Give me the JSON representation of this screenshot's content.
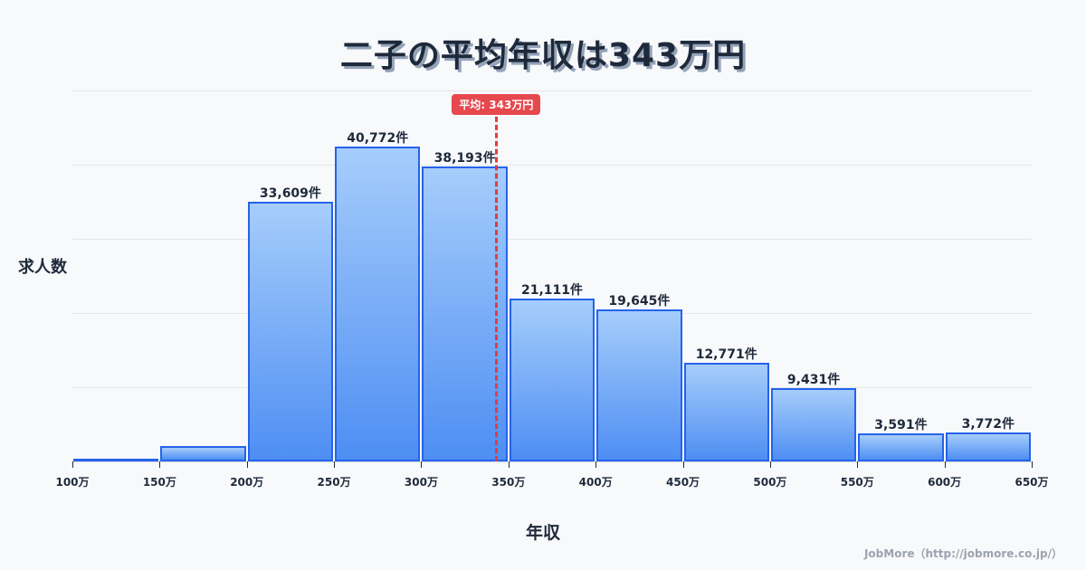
{
  "header": {
    "title": "二子の平均年収は343万円"
  },
  "axes": {
    "ylabel": "求人数",
    "xlabel": "年収"
  },
  "mean": {
    "label": "平均: 343万円",
    "value": 343,
    "color": "#e5484d"
  },
  "credit": "JobMore（http://jobmore.co.jp/）",
  "colors": {
    "bar_border": "#2563eb",
    "bar_top": "#a6cdfb",
    "bar_bottom": "#4e8ef3",
    "title": "#1e293b"
  },
  "chart_data": {
    "type": "bar",
    "title": "二子の平均年収は343万円",
    "xlabel": "年収",
    "ylabel": "求人数",
    "x_ticks": [
      "100万",
      "150万",
      "200万",
      "250万",
      "300万",
      "350万",
      "400万",
      "450万",
      "500万",
      "550万",
      "600万",
      "650万"
    ],
    "categories": [
      "100-150万",
      "150-200万",
      "200-250万",
      "250-300万",
      "300-350万",
      "350-400万",
      "400-450万",
      "450-500万",
      "500-550万",
      "550-600万",
      "600-650万"
    ],
    "values": [
      100,
      2000,
      33609,
      40772,
      38193,
      21111,
      19645,
      12771,
      9431,
      3591,
      3772
    ],
    "labels": [
      "",
      "",
      "33,609件",
      "40,772件",
      "38,193件",
      "21,111件",
      "19,645件",
      "12,771件",
      "9,431件",
      "3,591件",
      "3,772件"
    ],
    "ylim": [
      0,
      48000
    ],
    "grid": true,
    "annotations": [
      {
        "type": "vline",
        "x": 343,
        "label": "平均: 343万円"
      }
    ]
  }
}
